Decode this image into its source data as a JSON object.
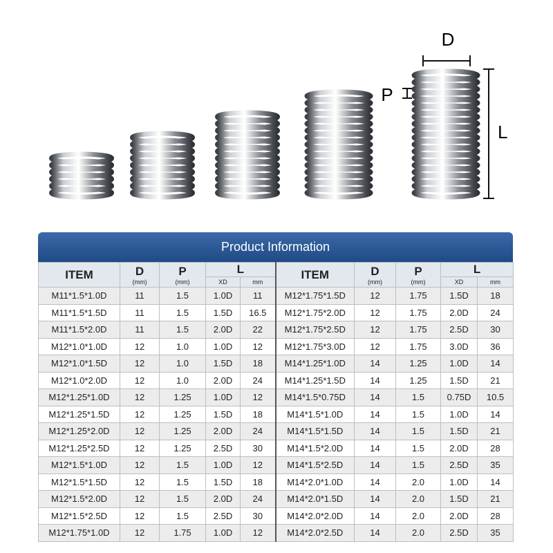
{
  "diagram": {
    "labels": {
      "d": "D",
      "p": "P",
      "l": "L"
    }
  },
  "table": {
    "title": "Product Information",
    "header_groups": [
      {
        "item": "ITEM",
        "d": "D",
        "d_unit": "(mm)",
        "p": "P",
        "p_unit": "(mm)",
        "l": "L",
        "l_xd": "XD",
        "l_mm": "mm"
      },
      {
        "item": "ITEM",
        "d": "D",
        "d_unit": "(mm)",
        "p": "P",
        "p_unit": "(mm)",
        "l": "L",
        "l_xd": "XD",
        "l_mm": "mm"
      }
    ],
    "rows": [
      [
        "M11*1.5*1.0D",
        "11",
        "1.5",
        "1.0D",
        "11",
        "M12*1.75*1.5D",
        "12",
        "1.75",
        "1.5D",
        "18"
      ],
      [
        "M11*1.5*1.5D",
        "11",
        "1.5",
        "1.5D",
        "16.5",
        "M12*1.75*2.0D",
        "12",
        "1.75",
        "2.0D",
        "24"
      ],
      [
        "M11*1.5*2.0D",
        "11",
        "1.5",
        "2.0D",
        "22",
        "M12*1.75*2.5D",
        "12",
        "1.75",
        "2.5D",
        "30"
      ],
      [
        "M12*1.0*1.0D",
        "12",
        "1.0",
        "1.0D",
        "12",
        "M12*1.75*3.0D",
        "12",
        "1.75",
        "3.0D",
        "36"
      ],
      [
        "M12*1.0*1.5D",
        "12",
        "1.0",
        "1.5D",
        "18",
        "M14*1.25*1.0D",
        "14",
        "1.25",
        "1.0D",
        "14"
      ],
      [
        "M12*1.0*2.0D",
        "12",
        "1.0",
        "2.0D",
        "24",
        "M14*1.25*1.5D",
        "14",
        "1.25",
        "1.5D",
        "21"
      ],
      [
        "M12*1.25*1.0D",
        "12",
        "1.25",
        "1.0D",
        "12",
        "M14*1.5*0.75D",
        "14",
        "1.5",
        "0.75D",
        "10.5"
      ],
      [
        "M12*1.25*1.5D",
        "12",
        "1.25",
        "1.5D",
        "18",
        "M14*1.5*1.0D",
        "14",
        "1.5",
        "1.0D",
        "14"
      ],
      [
        "M12*1.25*2.0D",
        "12",
        "1.25",
        "2.0D",
        "24",
        "M14*1.5*1.5D",
        "14",
        "1.5",
        "1.5D",
        "21"
      ],
      [
        "M12*1.25*2.5D",
        "12",
        "1.25",
        "2.5D",
        "30",
        "M14*1.5*2.0D",
        "14",
        "1.5",
        "2.0D",
        "28"
      ],
      [
        "M12*1.5*1.0D",
        "12",
        "1.5",
        "1.0D",
        "12",
        "M14*1.5*2.5D",
        "14",
        "1.5",
        "2.5D",
        "35"
      ],
      [
        "M12*1.5*1.5D",
        "12",
        "1.5",
        "1.5D",
        "18",
        "M14*2.0*1.0D",
        "14",
        "2.0",
        "1.0D",
        "14"
      ],
      [
        "M12*1.5*2.0D",
        "12",
        "1.5",
        "2.0D",
        "24",
        "M14*2.0*1.5D",
        "14",
        "2.0",
        "1.5D",
        "21"
      ],
      [
        "M12*1.5*2.5D",
        "12",
        "1.5",
        "2.5D",
        "30",
        "M14*2.0*2.0D",
        "14",
        "2.0",
        "2.0D",
        "28"
      ],
      [
        "M12*1.75*1.0D",
        "12",
        "1.75",
        "1.0D",
        "12",
        "M14*2.0*2.5D",
        "14",
        "2.0",
        "2.5D",
        "35"
      ]
    ]
  }
}
